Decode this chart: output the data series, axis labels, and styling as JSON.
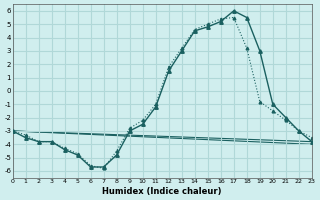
{
  "xlabel": "Humidex (Indice chaleur)",
  "ylabel": "",
  "xlim": [
    0,
    23
  ],
  "ylim": [
    -6.5,
    6.5
  ],
  "xticks": [
    0,
    1,
    2,
    3,
    4,
    5,
    6,
    7,
    8,
    9,
    10,
    11,
    12,
    13,
    14,
    15,
    16,
    17,
    18,
    19,
    20,
    21,
    22,
    23
  ],
  "yticks": [
    -6,
    -5,
    -4,
    -3,
    -2,
    -1,
    0,
    1,
    2,
    3,
    4,
    5,
    6
  ],
  "bg_color": "#d0eeee",
  "grid_color": "#b0d8d8",
  "line_color": "#1a6060",
  "line1_x": [
    0,
    1,
    2,
    3,
    4,
    5,
    6,
    7,
    8,
    9,
    10,
    11,
    12,
    13,
    14,
    15,
    16,
    17,
    18,
    19,
    20,
    21,
    22,
    23
  ],
  "line1_y": [
    -3.0,
    -3.5,
    -3.8,
    -3.8,
    -4.4,
    -4.8,
    -5.7,
    -5.7,
    -4.8,
    -3.0,
    -2.5,
    -1.2,
    1.5,
    3.0,
    4.5,
    4.8,
    5.2,
    6.0,
    5.5,
    3.0,
    -1.0,
    -2.0,
    -3.0,
    -3.8
  ],
  "line2_x": [
    0,
    1,
    2,
    3,
    4,
    5,
    6,
    7,
    8,
    9,
    10,
    11,
    12,
    13,
    14,
    15,
    16,
    17,
    18,
    19,
    20,
    21,
    22,
    23
  ],
  "line2_y": [
    -3.0,
    -3.3,
    -3.8,
    -3.8,
    -4.3,
    -4.7,
    -5.6,
    -5.8,
    -4.5,
    -2.8,
    -2.2,
    -1.0,
    1.8,
    3.2,
    4.6,
    5.0,
    5.4,
    5.5,
    3.2,
    -0.8,
    -1.5,
    -2.2,
    -3.0,
    -3.5
  ],
  "line3_x": [
    0,
    23
  ],
  "line3_y": [
    -3.0,
    -3.8
  ],
  "line4_x": [
    0,
    23
  ],
  "line4_y": [
    -3.0,
    -4.0
  ]
}
